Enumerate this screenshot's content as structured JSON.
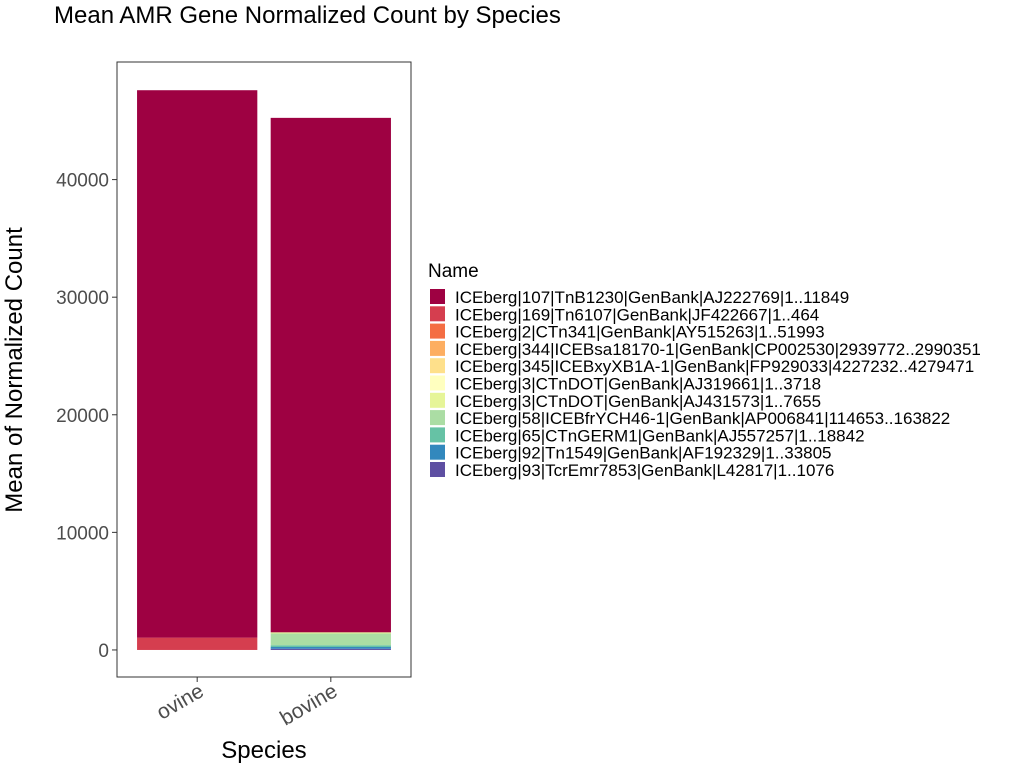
{
  "chart_data": {
    "type": "bar",
    "stacked": true,
    "title": "Mean AMR Gene Normalized Count by Species",
    "xlabel": "Species",
    "ylabel": "Mean of Normalized Count",
    "categories": [
      "ovine",
      "bovine"
    ],
    "ylim": [
      -2300,
      50000
    ],
    "yticks": [
      0,
      10000,
      20000,
      30000,
      40000
    ],
    "grid": false,
    "legend_title": "Name",
    "legend_position": "right",
    "series": [
      {
        "name": "ICEberg|107|TnB1230|GenBank|AJ222769|1..11849",
        "color": "#9E0142",
        "values": [
          46550,
          43750
        ]
      },
      {
        "name": "ICEberg|169|Tn6107|GenBank|JF422667|1..464",
        "color": "#D53E4F",
        "values": [
          1050,
          0
        ]
      },
      {
        "name": "ICEberg|2|CTn341|GenBank|AY515263|1..51993",
        "color": "#F46D43",
        "values": [
          0,
          0
        ]
      },
      {
        "name": "ICEberg|344|ICEBsa18170-1|GenBank|CP002530|2939772..2990351",
        "color": "#FDAE61",
        "values": [
          0,
          0
        ]
      },
      {
        "name": "ICEberg|345|ICEBxyXB1A-1|GenBank|FP929033|4227232..4279471",
        "color": "#FEE08B",
        "values": [
          0,
          0
        ]
      },
      {
        "name": "ICEberg|3|CTnDOT|GenBank|AJ319661|1..3718",
        "color": "#FFFFBF",
        "values": [
          0,
          0
        ]
      },
      {
        "name": "ICEberg|3|CTnDOT|GenBank|AJ431573|1..7655",
        "color": "#E6F598",
        "values": [
          0,
          100
        ]
      },
      {
        "name": "ICEberg|58|ICEBfrYCH46-1|GenBank|AP006841|114653..163822",
        "color": "#ABDDA4",
        "values": [
          0,
          1000
        ]
      },
      {
        "name": "ICEberg|65|CTnGERM1|GenBank|AJ557257|1..18842",
        "color": "#66C2A5",
        "values": [
          0,
          150
        ]
      },
      {
        "name": "ICEberg|92|Tn1549|GenBank|AF192329|1..33805",
        "color": "#3288BD",
        "values": [
          0,
          150
        ]
      },
      {
        "name": "ICEberg|93|TcrEmr7853|GenBank|L42817|1..1076",
        "color": "#5E4FA2",
        "values": [
          0,
          100
        ]
      }
    ]
  }
}
